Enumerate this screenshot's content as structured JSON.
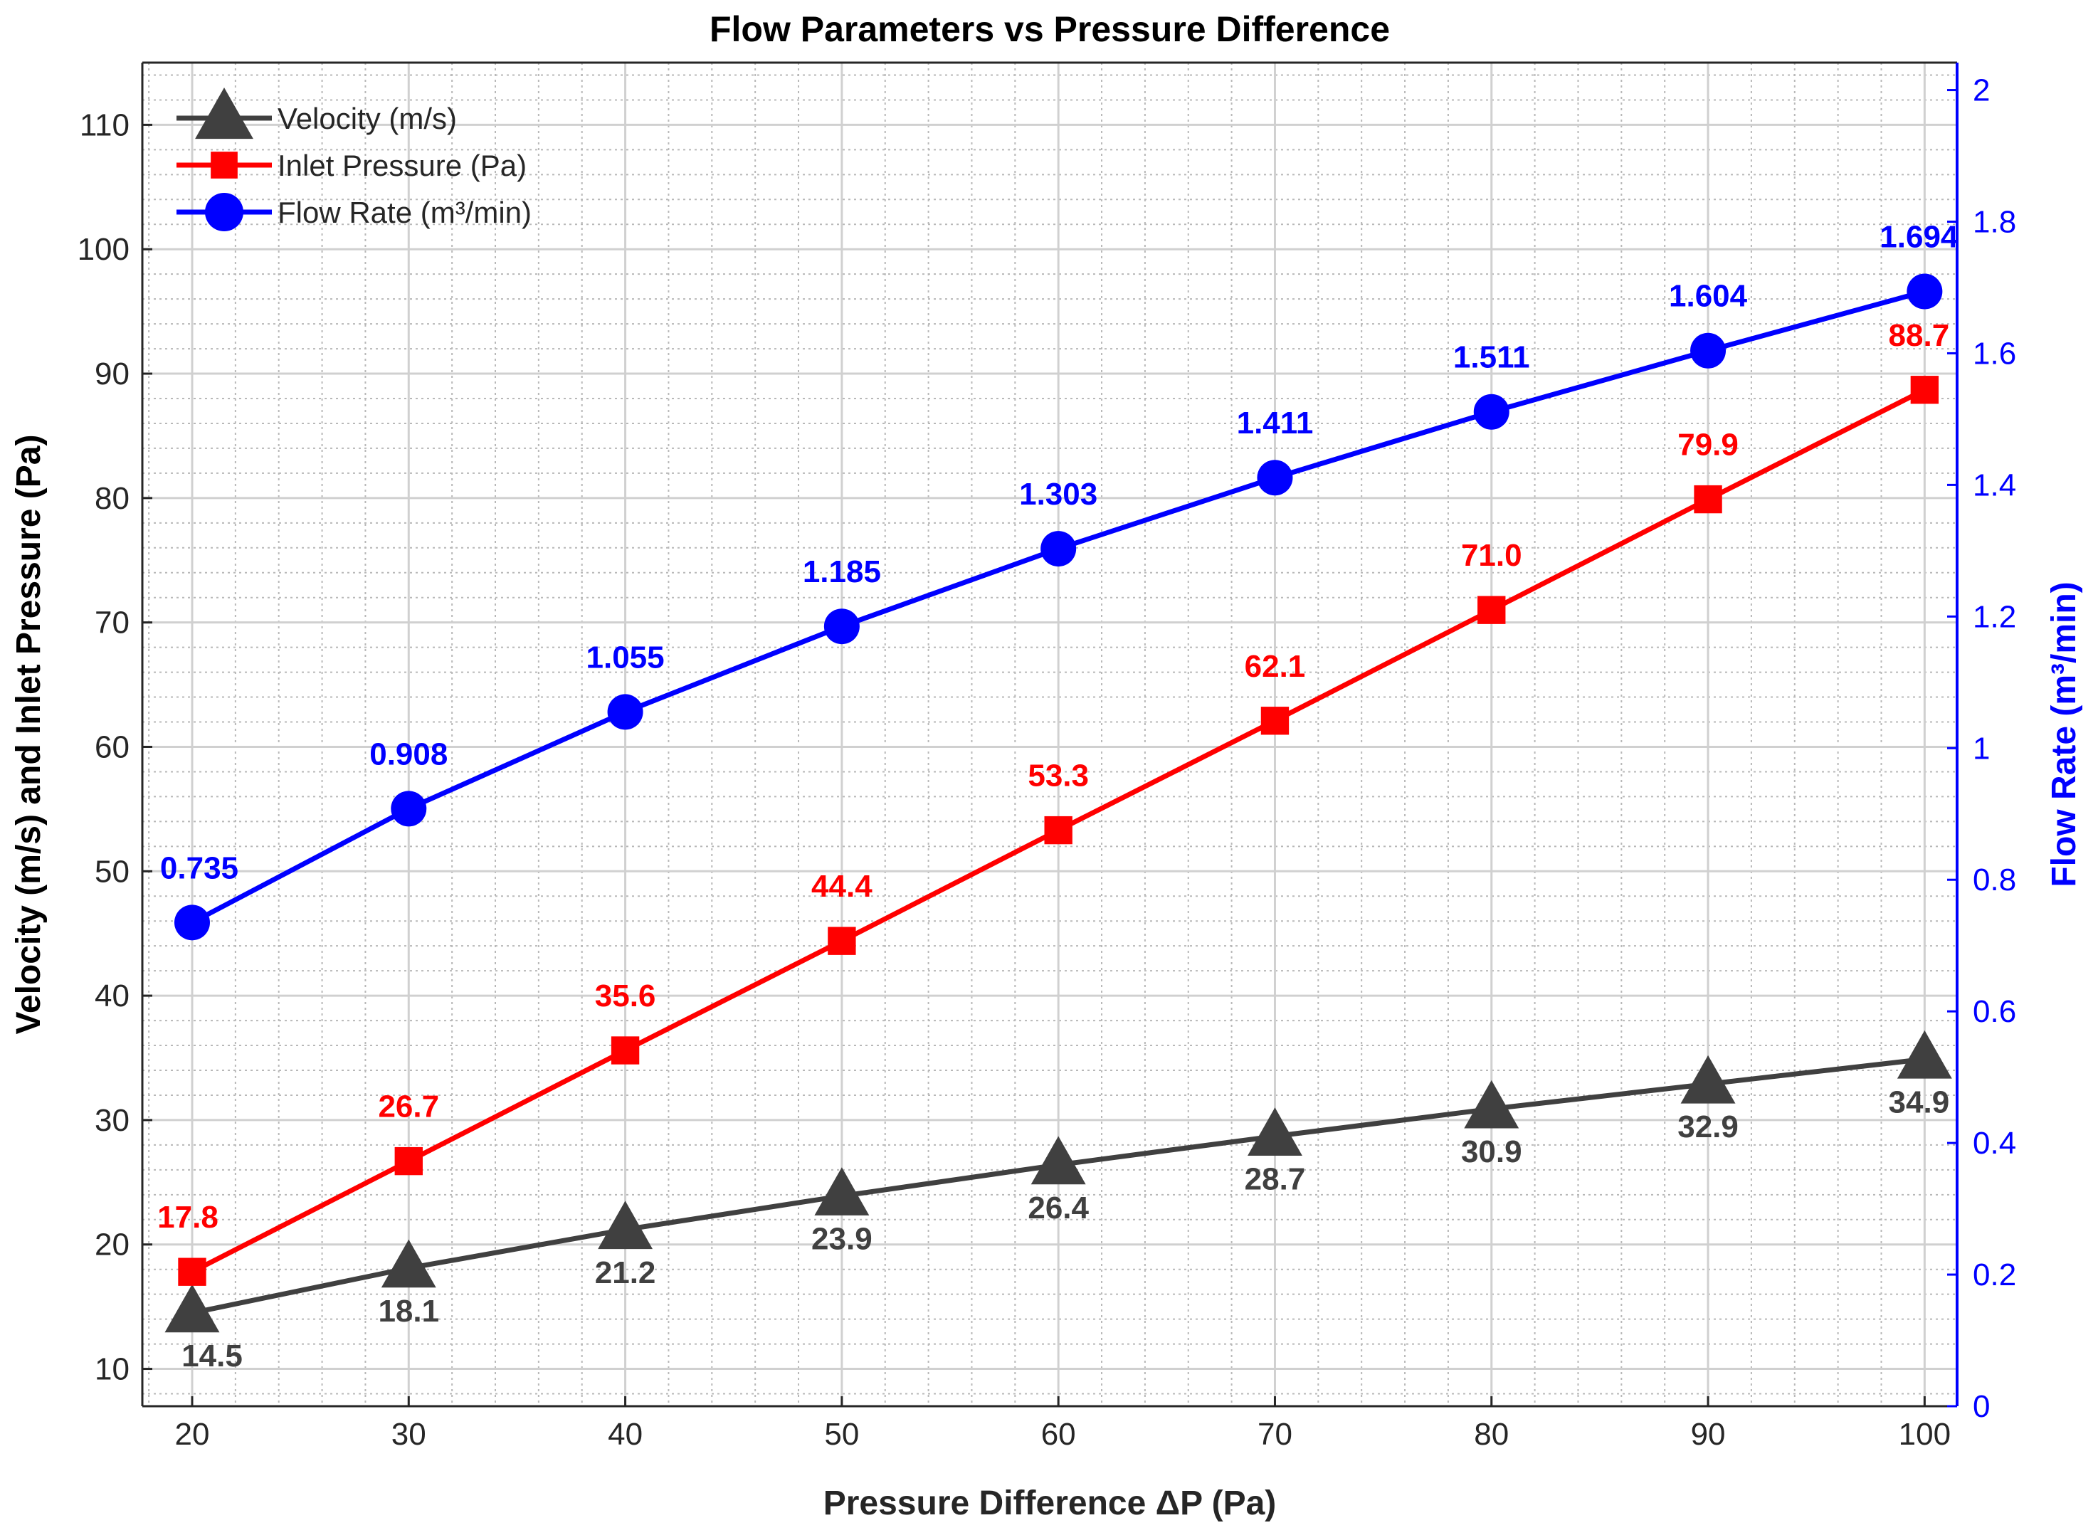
{
  "chart_data": {
    "type": "line",
    "title": "Flow Parameters vs Pressure Difference",
    "xlabel": "Pressure Difference ΔP (Pa)",
    "ylabel_left": "Velocity (m/s) and Inlet Pressure (Pa)",
    "ylabel_right": "Flow Rate (m³/min)",
    "x": [
      20,
      30,
      40,
      50,
      60,
      70,
      80,
      90,
      100
    ],
    "x_ticks": [
      "20",
      "30",
      "40",
      "50",
      "60",
      "70",
      "80",
      "90",
      "100"
    ],
    "xlim": [
      17.7,
      101.5
    ],
    "ylim_left": [
      7,
      115
    ],
    "ylim_right": [
      0,
      2.0417
    ],
    "y_ticks_left": [
      "10",
      "20",
      "30",
      "40",
      "50",
      "60",
      "70",
      "80",
      "90",
      "100",
      "110"
    ],
    "y_ticks_right": [
      "0",
      "0.2",
      "0.4",
      "0.6",
      "0.8",
      "1",
      "1.2",
      "1.4",
      "1.6",
      "1.8",
      "2"
    ],
    "grid": true,
    "legend_position": "top-left",
    "series": [
      {
        "name": "Velocity (m/s)",
        "axis": "left",
        "marker": "triangle",
        "color": "#404040",
        "values": [
          14.5,
          18.1,
          21.2,
          23.9,
          26.4,
          28.7,
          30.9,
          32.9,
          34.9
        ],
        "labels": [
          "14.5",
          "18.1",
          "21.2",
          "23.9",
          "26.4",
          "28.7",
          "30.9",
          "32.9",
          "34.9"
        ]
      },
      {
        "name": "Inlet Pressure (Pa)",
        "axis": "left",
        "marker": "square",
        "color": "#ff0000",
        "values": [
          17.8,
          26.7,
          35.6,
          44.4,
          53.3,
          62.1,
          71.0,
          79.9,
          88.7
        ],
        "labels": [
          "17.8",
          "26.7",
          "35.6",
          "44.4",
          "53.3",
          "62.1",
          "71.0",
          "79.9",
          "88.7"
        ]
      },
      {
        "name": "Flow Rate (m³/min)",
        "axis": "right",
        "marker": "circle",
        "color": "#0000ff",
        "values": [
          0.735,
          0.908,
          1.055,
          1.185,
          1.303,
          1.411,
          1.511,
          1.604,
          1.694
        ],
        "labels": [
          "0.735",
          "0.908",
          "1.055",
          "1.185",
          "1.303",
          "1.411",
          "1.511",
          "1.604",
          "1.694"
        ]
      }
    ]
  }
}
